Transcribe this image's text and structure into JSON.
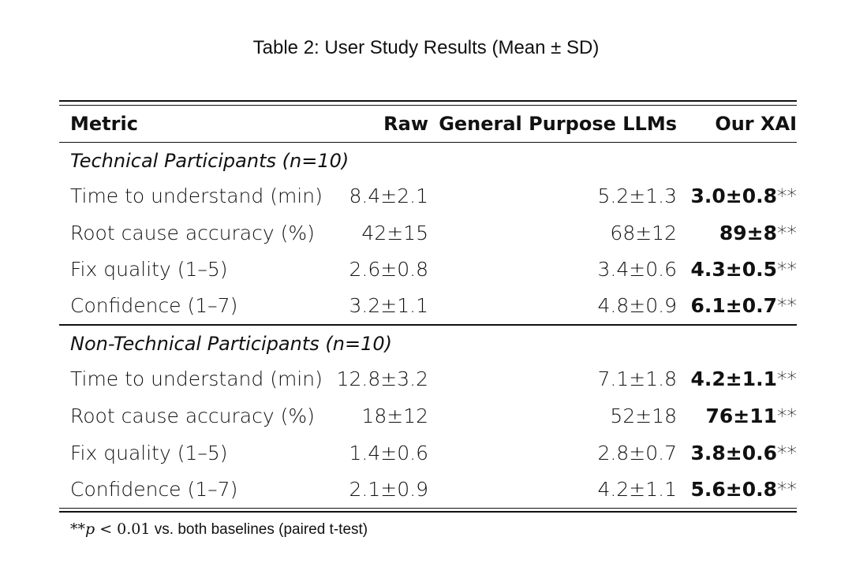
{
  "caption": "Table 2: User Study Results (Mean ± SD)",
  "columns": {
    "metric": "Metric",
    "raw": "Raw",
    "llm": "General Purpose LLMs",
    "xai": "Our XAI"
  },
  "groups": [
    {
      "label": "Technical Participants (n=10)",
      "rows": [
        {
          "metric": "Time to understand (min)",
          "raw": "8.4±2.1",
          "llm": "5.2±1.3",
          "xai": "3.0±0.8",
          "sig": "**"
        },
        {
          "metric": "Root cause accuracy (%)",
          "raw": "42±15",
          "llm": "68±12",
          "xai": "89±8",
          "sig": "**"
        },
        {
          "metric": "Fix quality (1–5)",
          "raw": "2.6±0.8",
          "llm": "3.4±0.6",
          "xai": "4.3±0.5",
          "sig": "**"
        },
        {
          "metric": "Confidence (1–7)",
          "raw": "3.2±1.1",
          "llm": "4.8±0.9",
          "xai": "6.1±0.7",
          "sig": "**"
        }
      ]
    },
    {
      "label": "Non-Technical Participants (n=10)",
      "rows": [
        {
          "metric": "Time to understand (min)",
          "raw": "12.8±3.2",
          "llm": "7.1±1.8",
          "xai": "4.2±1.1",
          "sig": "**"
        },
        {
          "metric": "Root cause accuracy (%)",
          "raw": "18±12",
          "llm": "52±18",
          "xai": "76±11",
          "sig": "**"
        },
        {
          "metric": "Fix quality (1–5)",
          "raw": "1.4±0.6",
          "llm": "2.8±0.7",
          "xai": "3.8±0.6",
          "sig": "**"
        },
        {
          "metric": "Confidence (1–7)",
          "raw": "2.1±0.9",
          "llm": "4.2±1.1",
          "xai": "5.6±0.8",
          "sig": "**"
        }
      ]
    }
  ],
  "footnote": {
    "stars": "**",
    "p_symbol": "p",
    "relation": " < 0.01",
    "text": " vs. both baselines (paired t-test)"
  }
}
